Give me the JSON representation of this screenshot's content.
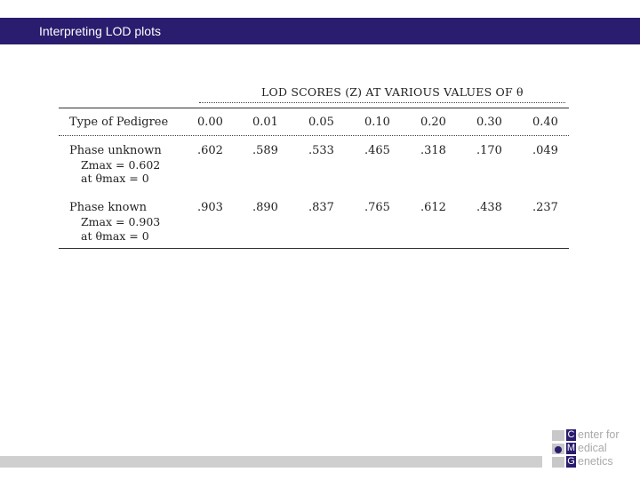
{
  "header": {
    "title": "Interpreting LOD plots"
  },
  "table": {
    "heading": "LOD SCORES (Z) AT VARIOUS VALUES OF θ",
    "columns": [
      "Type of Pedigree",
      "0.00",
      "0.01",
      "0.05",
      "0.10",
      "0.20",
      "0.30",
      "0.40"
    ],
    "rows": [
      {
        "label": "Phase unknown",
        "zmax": "Zmax = 0.602",
        "theta": "at θmax = 0",
        "values": [
          ".602",
          ".589",
          ".533",
          ".465",
          ".318",
          ".170",
          ".049"
        ]
      },
      {
        "label": "Phase known",
        "zmax": "Zmax = 0.903",
        "theta": "at θmax = 0",
        "values": [
          ".903",
          ".890",
          ".837",
          ".765",
          ".612",
          ".438",
          ".237"
        ]
      }
    ]
  },
  "logo": {
    "letters": [
      "C",
      "M",
      "G"
    ],
    "words": [
      "enter for",
      "edical",
      "enetics"
    ]
  }
}
